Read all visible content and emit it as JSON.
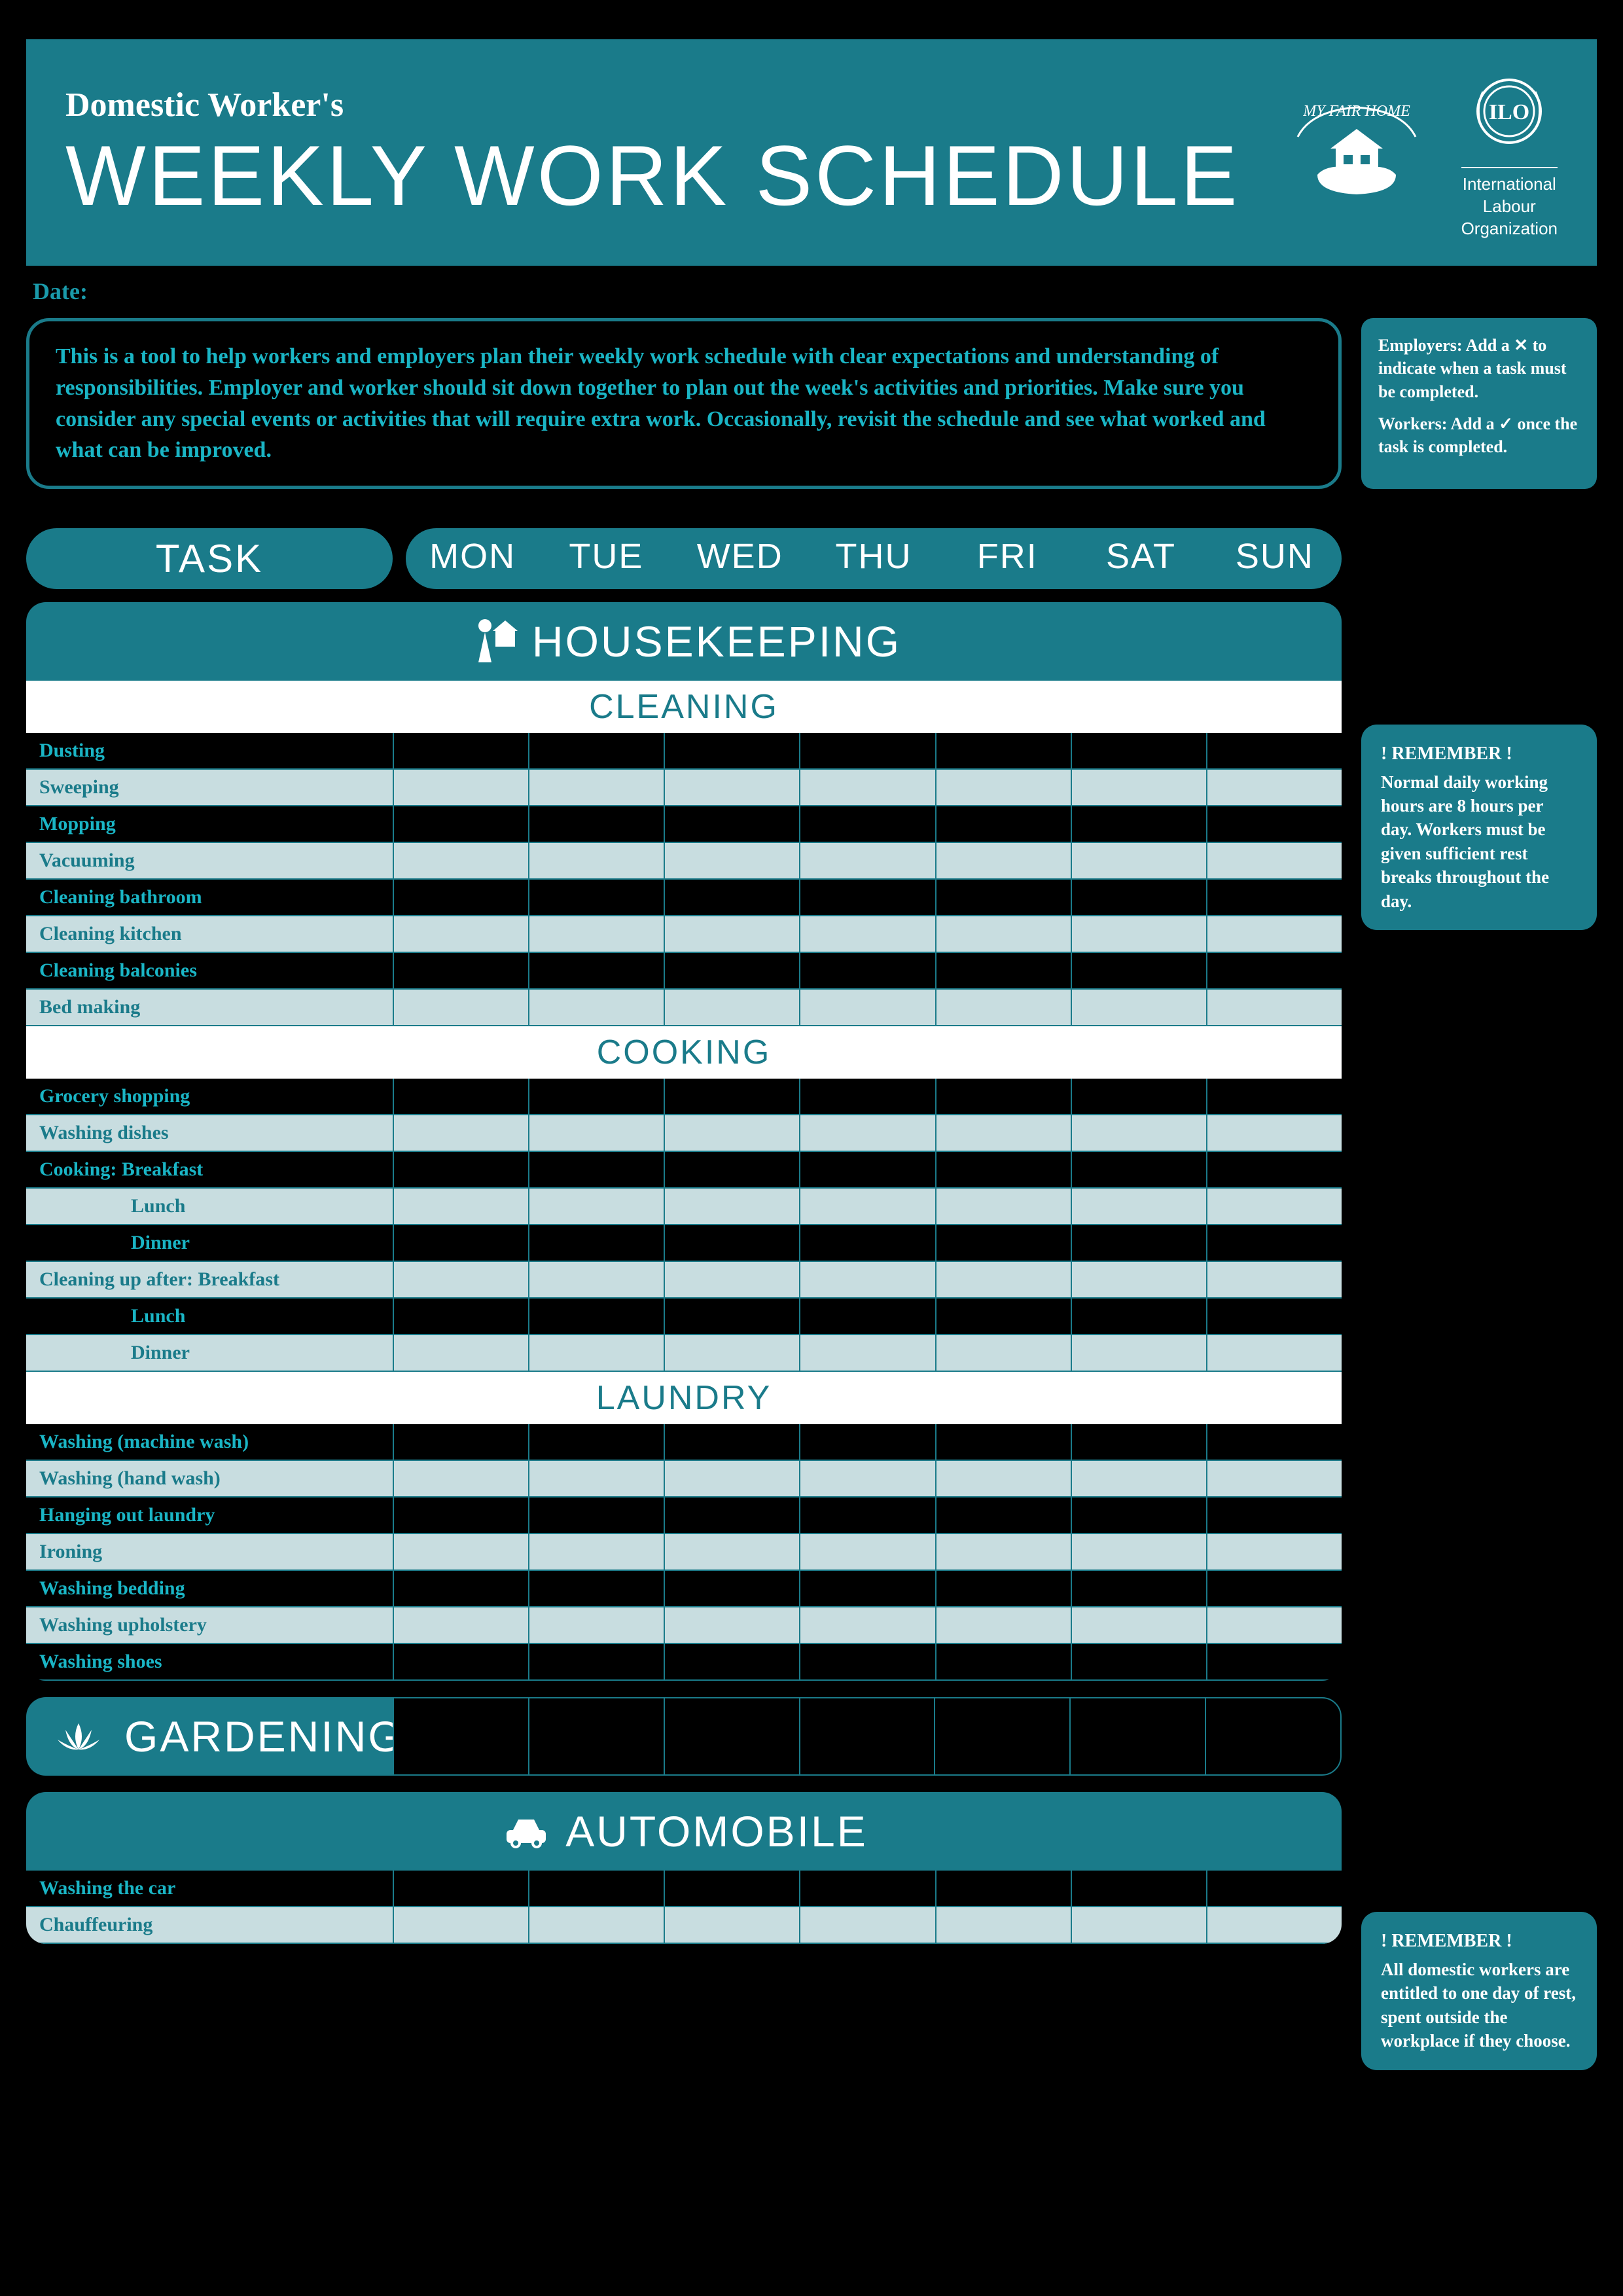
{
  "header": {
    "pretitle": "Domestic Worker's",
    "title": "WEEKLY WORK SCHEDULE",
    "logo_mfh_text": "MY FAIR HOME",
    "logo_ilo_text": "International\nLabour\nOrganization"
  },
  "date_label": "Date:",
  "intro": "This is a tool to help workers and employers plan their weekly work schedule with clear expectations and understanding of responsibilities. Employer and worker should sit down together to plan out the week's activities and priorities. Make sure you consider any special events or activities that will require extra work. Occasionally, revisit the schedule and see what worked and what can be improved.",
  "legend": {
    "employers": "Employers: Add a ✕ to indicate when a task must be completed.",
    "workers": "Workers: Add a ✓ once the task is completed."
  },
  "columns": {
    "task": "TASK",
    "days": [
      "MON",
      "TUE",
      "WED",
      "THU",
      "FRI",
      "SAT",
      "SUN"
    ]
  },
  "sections": [
    {
      "name": "HOUSEKEEPING",
      "icon": "person-house",
      "subsections": [
        {
          "name": "CLEANING",
          "tasks": [
            {
              "label": "Dusting"
            },
            {
              "label": "Sweeping"
            },
            {
              "label": "Mopping"
            },
            {
              "label": "Vacuuming"
            },
            {
              "label": "Cleaning bathroom"
            },
            {
              "label": "Cleaning kitchen"
            },
            {
              "label": "Cleaning balconies"
            },
            {
              "label": "Bed making"
            }
          ]
        },
        {
          "name": "COOKING",
          "tasks": [
            {
              "label": "Grocery shopping"
            },
            {
              "label": "Washing dishes"
            },
            {
              "label": "Cooking: Breakfast"
            },
            {
              "label": "Lunch",
              "indent": true
            },
            {
              "label": "Dinner",
              "indent": true
            },
            {
              "label": "Cleaning up after: Breakfast"
            },
            {
              "label": "Lunch",
              "indent": true
            },
            {
              "label": "Dinner",
              "indent": true
            }
          ]
        },
        {
          "name": "LAUNDRY",
          "tasks": [
            {
              "label": "Washing (machine wash)"
            },
            {
              "label": "Washing (hand wash)"
            },
            {
              "label": "Hanging out laundry"
            },
            {
              "label": "Ironing"
            },
            {
              "label": "Washing bedding"
            },
            {
              "label": "Washing upholstery"
            },
            {
              "label": "Washing shoes"
            }
          ]
        }
      ]
    },
    {
      "name": "GARDENING",
      "icon": "lotus",
      "single_row": true
    },
    {
      "name": "AUTOMOBILE",
      "icon": "car",
      "subsections": [
        {
          "name": "",
          "tasks": [
            {
              "label": "Washing the car"
            },
            {
              "label": "Chauffeuring"
            }
          ]
        }
      ]
    }
  ],
  "reminders": [
    {
      "title": "! REMEMBER !",
      "text": "Normal daily working hours are 8 hours per day. Workers must be given sufficient rest breaks throughout the day."
    },
    {
      "title": "! REMEMBER !",
      "text": "All domestic workers are entitled to one day of rest, spent outside the workplace if they choose."
    }
  ],
  "colors": {
    "background": "#000000",
    "teal_dark": "#1a7b8a",
    "teal_light": "#1ab5c5",
    "row_alt": "#c8dde0",
    "white": "#ffffff"
  }
}
